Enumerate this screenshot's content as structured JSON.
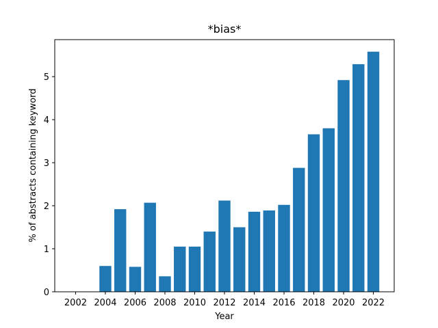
{
  "chart_data": {
    "type": "bar",
    "title": "*bias*",
    "xlabel": "Year",
    "ylabel": "% of abstracts containing keyword",
    "x": [
      2002,
      2003,
      2004,
      2005,
      2006,
      2007,
      2008,
      2009,
      2010,
      2011,
      2012,
      2013,
      2014,
      2015,
      2016,
      2017,
      2018,
      2019,
      2020,
      2021,
      2022
    ],
    "values": [
      0,
      0,
      0.6,
      1.92,
      0.58,
      2.07,
      0.36,
      1.05,
      1.05,
      1.4,
      2.12,
      1.5,
      1.86,
      1.89,
      2.02,
      2.88,
      3.66,
      3.8,
      4.92,
      5.29,
      5.58
    ],
    "xticks": [
      2002,
      2004,
      2006,
      2008,
      2010,
      2012,
      2014,
      2016,
      2018,
      2020,
      2022
    ],
    "yticks": [
      0,
      1,
      2,
      3,
      4,
      5
    ],
    "xlim": [
      2000.6,
      2023.4
    ],
    "ylim": [
      0,
      5.86
    ],
    "bar_color": "#1f77b4",
    "grid": false,
    "legend": "none"
  }
}
